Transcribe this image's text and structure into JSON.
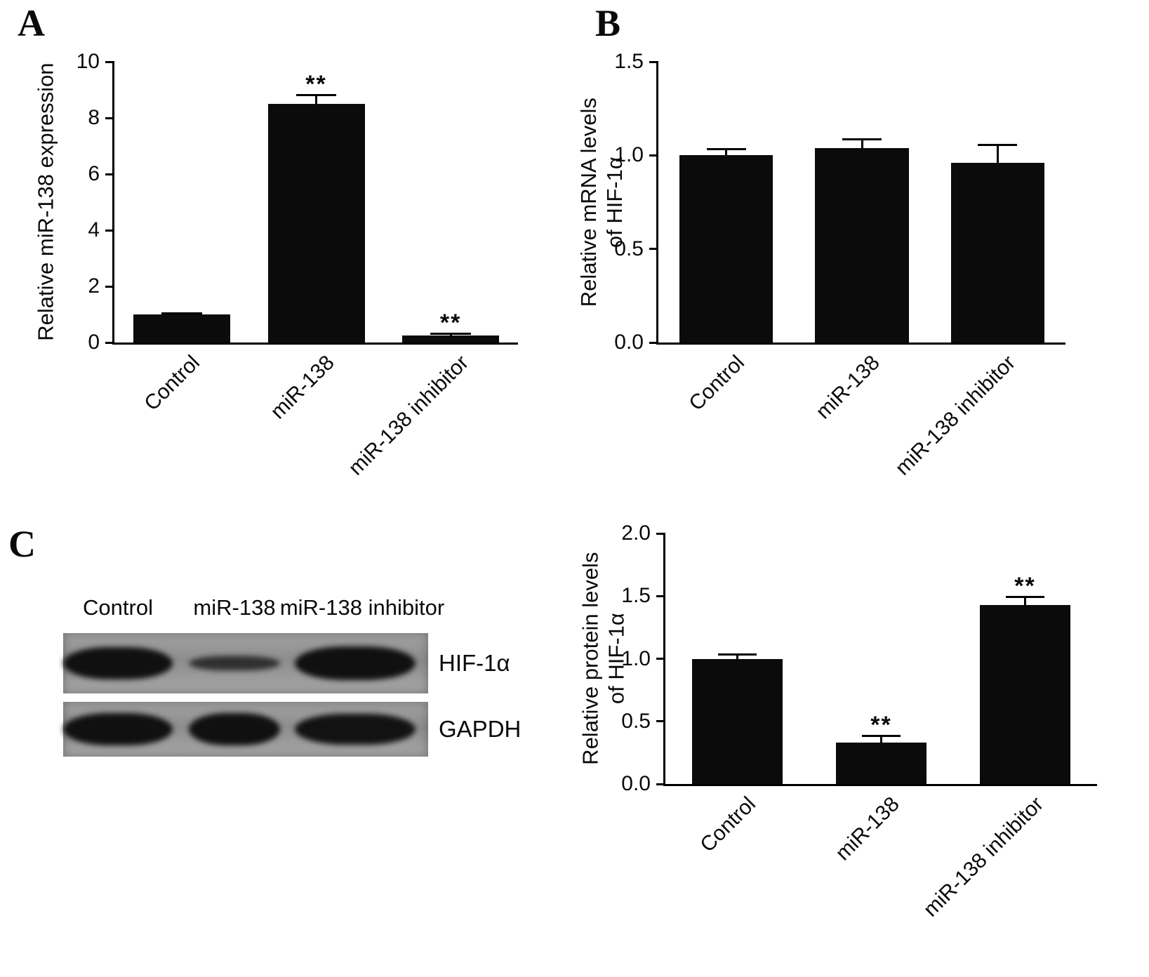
{
  "panels": {
    "a": {
      "label": "A"
    },
    "b": {
      "label": "B"
    },
    "c": {
      "label": "C"
    }
  },
  "western_blot": {
    "lane_labels": [
      "Control",
      "miR-138",
      "miR-138 inhibitor"
    ],
    "bands": [
      {
        "label": "HIF-1α",
        "intensities": [
          1.0,
          0.45,
          1.05
        ]
      },
      {
        "label": "GAPDH",
        "intensities": [
          1.0,
          1.0,
          0.95
        ]
      }
    ]
  },
  "chart_data": [
    {
      "id": "chart-a",
      "panel": "A",
      "type": "bar",
      "categories": [
        "Control",
        "miR-138",
        "miR-138 inhibitor"
      ],
      "values": [
        1.0,
        8.5,
        0.25
      ],
      "errors": [
        0.08,
        0.35,
        0.1
      ],
      "annotations": [
        "",
        "**",
        "**"
      ],
      "ylabel": "Relative miR-138 expression",
      "xlabel": "",
      "ylim": [
        0,
        10
      ],
      "yticks": [
        0,
        2,
        4,
        6,
        8,
        10
      ],
      "ytick_labels": [
        "0",
        "2",
        "4",
        "6",
        "8",
        "10"
      ],
      "bar_color": "#0b0b0b",
      "bar_width_pct": 24,
      "grid": false,
      "legend": "none"
    },
    {
      "id": "chart-b",
      "panel": "B",
      "type": "bar",
      "categories": [
        "Control",
        "miR-138",
        "miR-138 inhibitor"
      ],
      "values": [
        1.0,
        1.04,
        0.96
      ],
      "errors": [
        0.04,
        0.05,
        0.1
      ],
      "annotations": [
        "",
        "",
        ""
      ],
      "ylabel": "Relative mRNA levels\nof HIF-1α",
      "xlabel": "",
      "ylim": [
        0,
        1.5
      ],
      "yticks": [
        0,
        0.5,
        1.0,
        1.5
      ],
      "ytick_labels": [
        "0.0",
        "0.5",
        "1.0",
        "1.5"
      ],
      "bar_color": "#0b0b0b",
      "bar_width_pct": 23,
      "grid": false,
      "legend": "none"
    },
    {
      "id": "chart-c",
      "panel": "C",
      "type": "bar",
      "categories": [
        "Control",
        "miR-138",
        "miR-138 inhibitor"
      ],
      "values": [
        1.0,
        0.33,
        1.43
      ],
      "errors": [
        0.04,
        0.06,
        0.07
      ],
      "annotations": [
        "",
        "**",
        "**"
      ],
      "ylabel": "Relative protein levels\nof HIF-1α",
      "xlabel": "",
      "ylim": [
        0,
        2.0
      ],
      "yticks": [
        0,
        0.5,
        1.0,
        1.5,
        2.0
      ],
      "ytick_labels": [
        "0.0",
        "0.5",
        "1.0",
        "1.5",
        "2.0"
      ],
      "bar_color": "#0b0b0b",
      "bar_width_pct": 21,
      "grid": false,
      "legend": "none"
    }
  ]
}
